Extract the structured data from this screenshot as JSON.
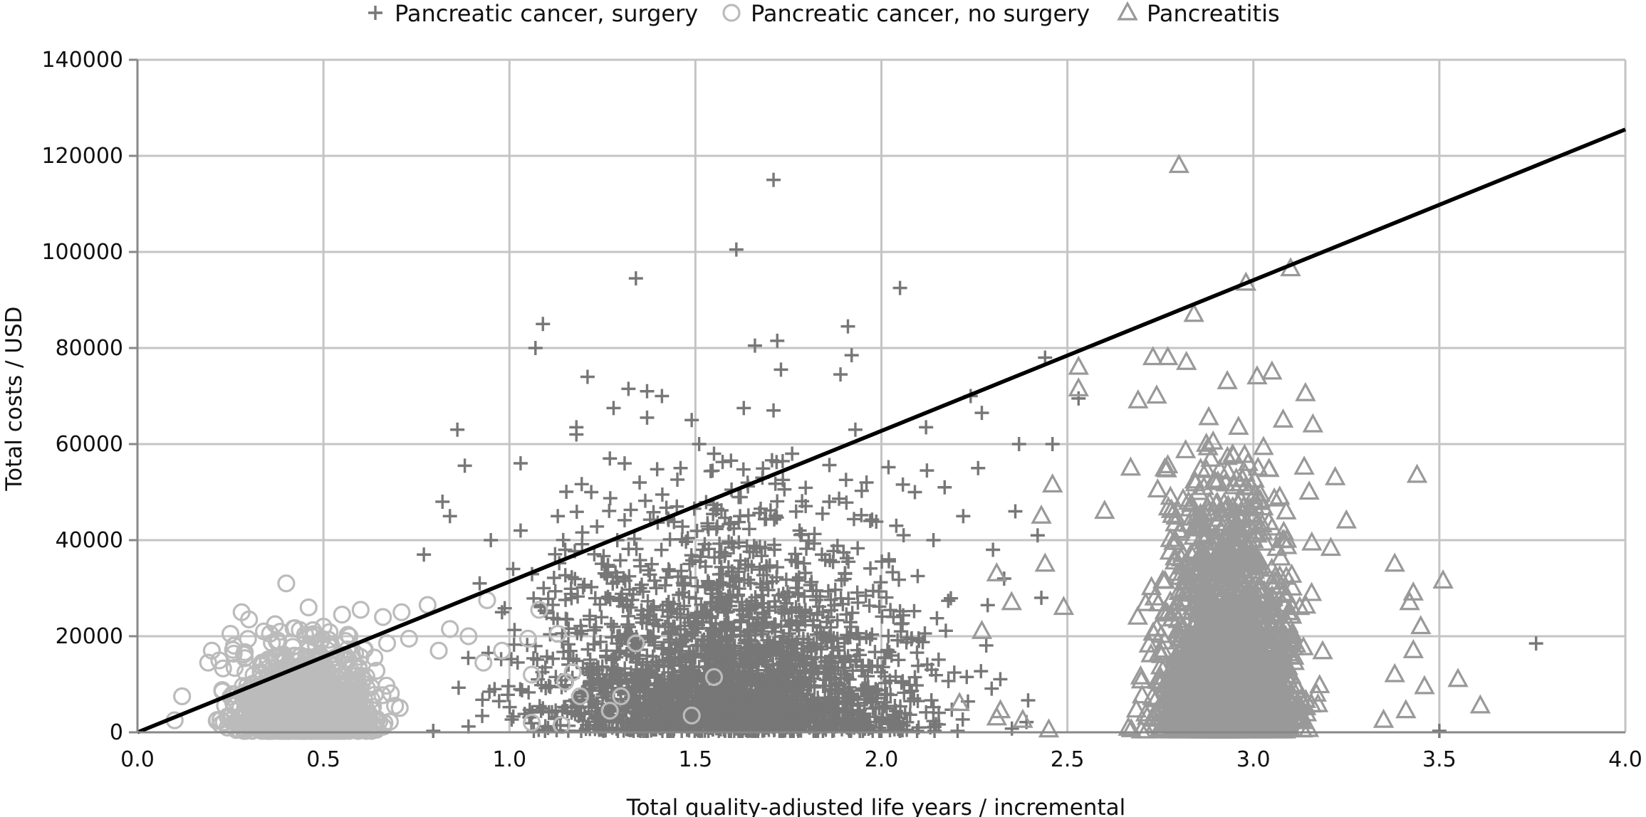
{
  "chart_data": {
    "type": "scatter",
    "title": "",
    "xlabel": "Total quality-adjusted life years / incremental",
    "ylabel": "Total costs / USD",
    "xlim": [
      0,
      4
    ],
    "ylim": [
      0,
      140000
    ],
    "x_ticks": [
      "0.0",
      "0.5",
      "1.0",
      "1.5",
      "2.0",
      "2.5",
      "3.0",
      "3.5",
      "4.0"
    ],
    "y_ticks": [
      "0",
      "20000",
      "40000",
      "60000",
      "80000",
      "100000",
      "120000",
      "140000"
    ],
    "grid": true,
    "legend_position": "top",
    "reference_line": {
      "x": [
        0,
        4
      ],
      "y": [
        0,
        125500
      ],
      "color": "#000000"
    },
    "series": [
      {
        "name": "Pancreatic cancer, surgery",
        "marker": "plus",
        "color": "#777777",
        "cloud": {
          "x_center": 1.6,
          "x_spread": 0.55,
          "y_scale": 14000,
          "count": 2600
        },
        "points": [
          [
            1.71,
            115000
          ],
          [
            1.61,
            100500
          ],
          [
            1.34,
            94500
          ],
          [
            2.05,
            92500
          ],
          [
            1.09,
            85000
          ],
          [
            1.91,
            84500
          ],
          [
            1.07,
            80000
          ],
          [
            1.72,
            81500
          ],
          [
            1.66,
            80500
          ],
          [
            1.92,
            78500
          ],
          [
            2.44,
            78000
          ],
          [
            1.73,
            75500
          ],
          [
            1.89,
            74500
          ],
          [
            1.21,
            74000
          ],
          [
            1.32,
            71500
          ],
          [
            1.37,
            71000
          ],
          [
            1.41,
            70000
          ],
          [
            2.24,
            70000
          ],
          [
            2.53,
            69500
          ],
          [
            1.63,
            67500
          ],
          [
            1.28,
            67500
          ],
          [
            1.71,
            67000
          ],
          [
            2.27,
            66500
          ],
          [
            1.37,
            65500
          ],
          [
            1.49,
            65000
          ],
          [
            1.93,
            63000
          ],
          [
            0.86,
            63000
          ],
          [
            1.18,
            63500
          ],
          [
            2.12,
            63500
          ],
          [
            1.76,
            58000
          ],
          [
            1.51,
            60000
          ],
          [
            2.37,
            60000
          ],
          [
            2.46,
            60000
          ],
          [
            1.03,
            56000
          ],
          [
            0.88,
            55500
          ],
          [
            1.18,
            62000
          ],
          [
            1.27,
            57000
          ],
          [
            1.55,
            58000
          ],
          [
            1.46,
            55000
          ],
          [
            0.82,
            48000
          ],
          [
            0.84,
            45000
          ],
          [
            0.77,
            37000
          ],
          [
            0.95,
            40000
          ],
          [
            2.17,
            51000
          ],
          [
            2.26,
            55000
          ],
          [
            1.22,
            50000
          ],
          [
            1.35,
            52000
          ],
          [
            1.68,
            53000
          ],
          [
            1.86,
            48000
          ],
          [
            1.96,
            52000
          ],
          [
            2.09,
            50000
          ],
          [
            2.22,
            45000
          ],
          [
            2.36,
            46000
          ],
          [
            2.42,
            41000
          ],
          [
            2.3,
            38000
          ],
          [
            2.14,
            40000
          ],
          [
            1.97,
            44000
          ],
          [
            1.78,
            42000
          ],
          [
            1.45,
            47000
          ],
          [
            1.13,
            45000
          ],
          [
            1.03,
            42000
          ],
          [
            1.01,
            34000
          ],
          [
            0.92,
            31000
          ],
          [
            0.98,
            25000
          ],
          [
            2.02,
            36000
          ],
          [
            2.33,
            32000
          ],
          [
            2.43,
            28000
          ],
          [
            3.76,
            18500
          ],
          [
            3.5,
            300
          ],
          [
            1.52,
            38000
          ],
          [
            1.29,
            40000
          ],
          [
            1.62,
            45000
          ],
          [
            1.84,
            37000
          ],
          [
            2.04,
            43000
          ],
          [
            1.15,
            38000
          ]
        ]
      },
      {
        "name": "Pancreatic cancer, no surgery",
        "marker": "circle",
        "color": "#bbbbbb",
        "cloud": {
          "x_center": 0.45,
          "x_spread": 0.19,
          "y_scale": 5500,
          "count": 1500
        },
        "points": [
          [
            0.4,
            31000
          ],
          [
            0.78,
            26500
          ],
          [
            0.46,
            26000
          ],
          [
            0.28,
            25000
          ],
          [
            0.71,
            25000
          ],
          [
            0.55,
            24500
          ],
          [
            0.6,
            25500
          ],
          [
            0.66,
            24000
          ],
          [
            0.3,
            23500
          ],
          [
            0.37,
            22500
          ],
          [
            1.08,
            25500
          ],
          [
            0.94,
            27500
          ],
          [
            0.84,
            21500
          ],
          [
            0.89,
            20000
          ],
          [
            1.13,
            20500
          ],
          [
            1.05,
            19500
          ],
          [
            1.34,
            18500
          ],
          [
            0.98,
            17000
          ],
          [
            0.93,
            14500
          ],
          [
            1.06,
            12000
          ],
          [
            1.17,
            12500
          ],
          [
            1.55,
            11500
          ],
          [
            1.15,
            10500
          ],
          [
            1.3,
            7500
          ],
          [
            1.19,
            7500
          ],
          [
            1.27,
            4500
          ],
          [
            1.49,
            3500
          ],
          [
            1.14,
            1500
          ],
          [
            1.06,
            2000
          ],
          [
            0.1,
            2500
          ],
          [
            0.2,
            17000
          ],
          [
            0.25,
            20500
          ],
          [
            0.34,
            21000
          ],
          [
            0.5,
            22000
          ],
          [
            0.57,
            20000
          ],
          [
            0.73,
            19500
          ],
          [
            0.81,
            17000
          ],
          [
            0.19,
            14500
          ],
          [
            0.12,
            7500
          ]
        ]
      },
      {
        "name": "Pancreatitis",
        "marker": "triangle",
        "color": "#999999",
        "cloud": {
          "x_center": 2.93,
          "x_spread": 0.19,
          "y_scale": 15000,
          "count": 2400
        },
        "points": [
          [
            2.8,
            118000
          ],
          [
            3.1,
            96500
          ],
          [
            2.98,
            93500
          ],
          [
            2.84,
            87000
          ],
          [
            2.53,
            76000
          ],
          [
            2.77,
            78000
          ],
          [
            2.82,
            77000
          ],
          [
            2.73,
            78000
          ],
          [
            2.53,
            71500
          ],
          [
            3.01,
            74000
          ],
          [
            3.05,
            75000
          ],
          [
            2.69,
            69000
          ],
          [
            2.74,
            70000
          ],
          [
            2.93,
            73000
          ],
          [
            3.14,
            70500
          ],
          [
            3.08,
            65000
          ],
          [
            2.88,
            65500
          ],
          [
            2.96,
            63500
          ],
          [
            3.16,
            64000
          ],
          [
            3.44,
            53500
          ],
          [
            2.46,
            51500
          ],
          [
            2.43,
            45000
          ],
          [
            2.6,
            46000
          ],
          [
            2.67,
            55000
          ],
          [
            2.77,
            55500
          ],
          [
            3.22,
            53000
          ],
          [
            3.15,
            50000
          ],
          [
            3.25,
            44000
          ],
          [
            2.21,
            6000
          ],
          [
            2.32,
            4500
          ],
          [
            2.31,
            3000
          ],
          [
            2.38,
            2500
          ],
          [
            2.27,
            21000
          ],
          [
            2.35,
            27000
          ],
          [
            2.31,
            33000
          ],
          [
            3.38,
            35000
          ],
          [
            3.43,
            29000
          ],
          [
            3.51,
            31500
          ],
          [
            3.42,
            27000
          ],
          [
            3.45,
            22000
          ],
          [
            3.43,
            17000
          ],
          [
            3.55,
            11000
          ],
          [
            3.61,
            5500
          ],
          [
            3.46,
            9500
          ],
          [
            3.41,
            4500
          ],
          [
            3.35,
            2500
          ],
          [
            3.38,
            12000
          ],
          [
            2.44,
            35000
          ],
          [
            2.49,
            26000
          ],
          [
            2.45,
            500
          ]
        ]
      }
    ]
  }
}
